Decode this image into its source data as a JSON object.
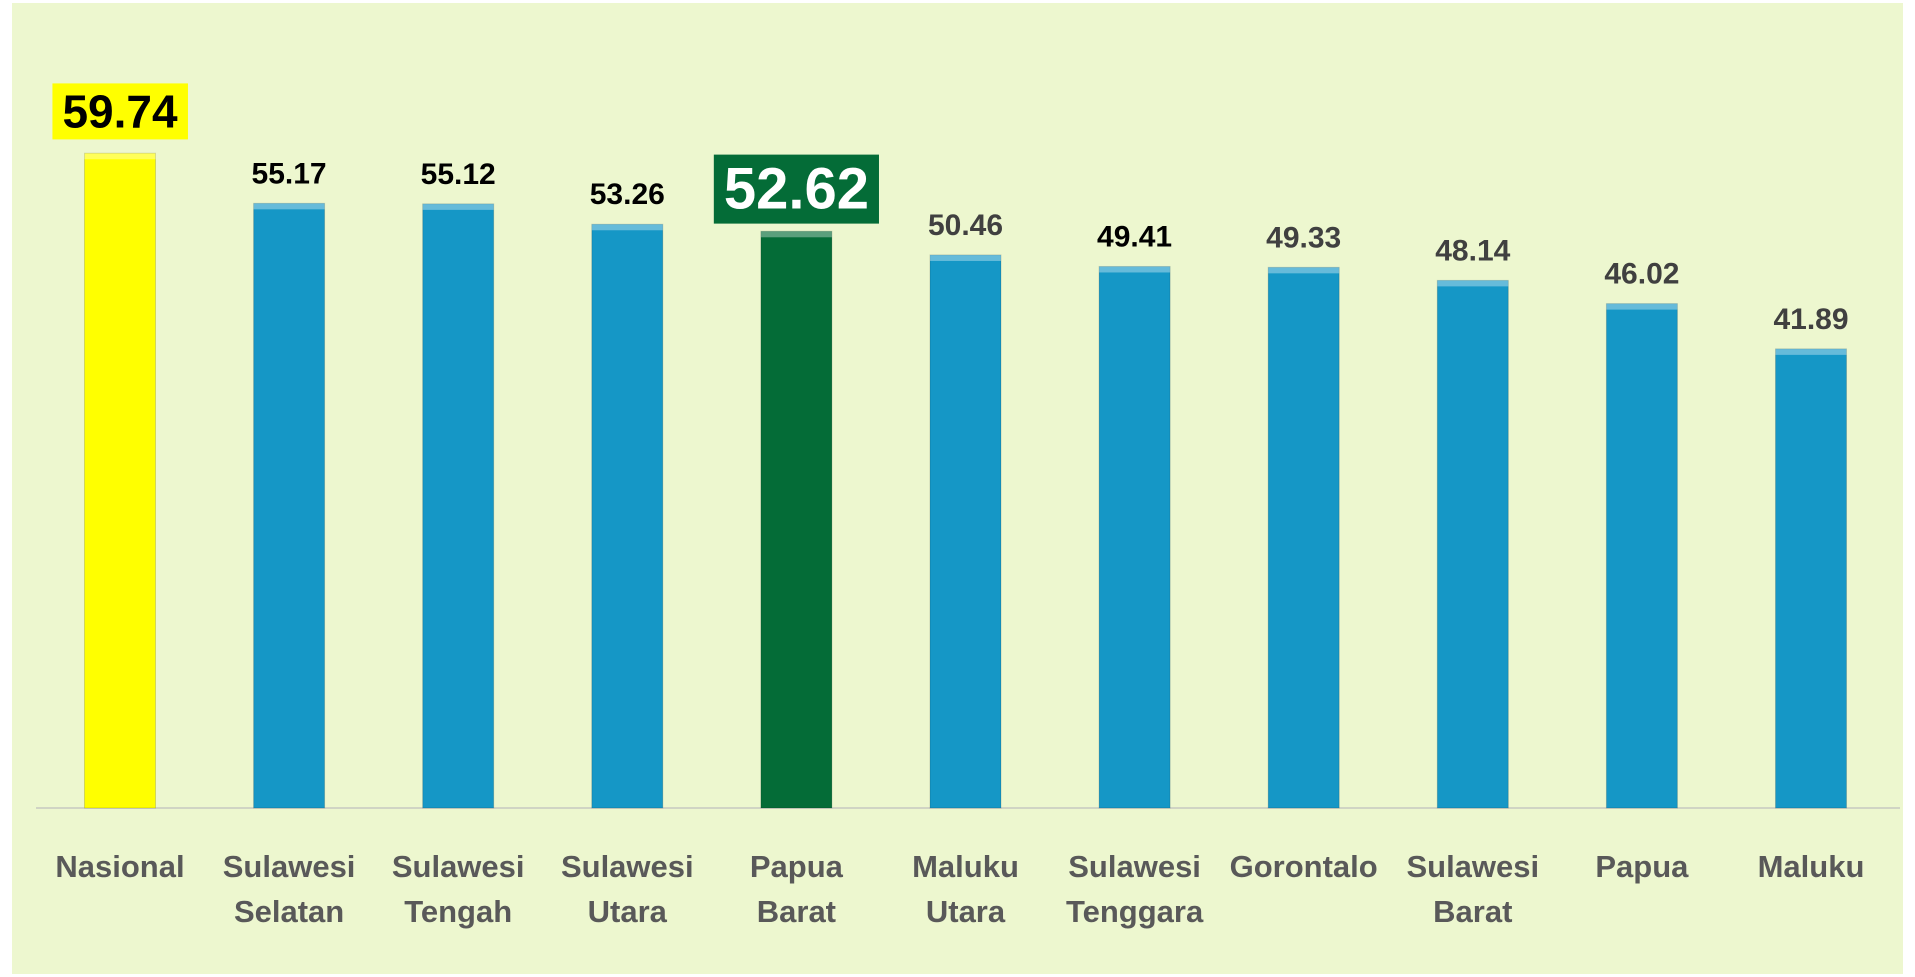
{
  "chart_data": {
    "type": "bar",
    "categories": [
      "Nasional",
      "Sulawesi Selatan",
      "Sulawesi Tengah",
      "Sulawesi Utara",
      "Papua Barat",
      "Maluku Utara",
      "Sulawesi Tenggara",
      "Gorontalo",
      "Sulawesi Barat",
      "Papua",
      "Maluku"
    ],
    "values": [
      59.74,
      55.17,
      55.12,
      53.26,
      52.62,
      50.46,
      49.41,
      49.33,
      48.14,
      46.02,
      41.89
    ],
    "color": "#1597c6",
    "colors": [
      "#ffff00",
      "#1597c6",
      "#1597c6",
      "#1597c6",
      "#046c37",
      "#1597c6",
      "#1597c6",
      "#1597c6",
      "#1597c6",
      "#1597c6",
      "#1597c6"
    ],
    "value_label_colors": [
      "#000000",
      "#000000",
      "#000000",
      "#000000",
      "#ffffff",
      "#404040",
      "#000000",
      "#404040",
      "#404040",
      "#404040",
      "#404040"
    ],
    "ylim": [
      0,
      65
    ]
  }
}
